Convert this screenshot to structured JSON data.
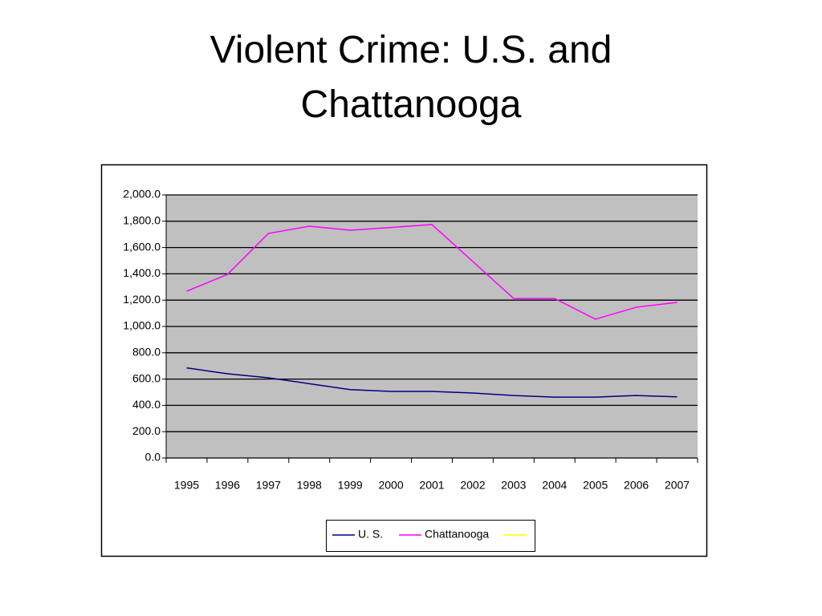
{
  "chart_data": {
    "type": "line",
    "title": "Violent Crime: U.S. and Chattanooga",
    "categories": [
      "1995",
      "1996",
      "1997",
      "1998",
      "1999",
      "2000",
      "2001",
      "2002",
      "2003",
      "2004",
      "2005",
      "2006",
      "2007"
    ],
    "series": [
      {
        "name": "U. S.",
        "color": "#000080",
        "values": [
          685,
          640,
          610,
          565,
          520,
          506,
          506,
          494,
          475,
          463,
          463,
          475,
          465
        ]
      },
      {
        "name": "Chattanooga",
        "color": "#ff00ff",
        "values": [
          1268,
          1396,
          1707,
          1762,
          1732,
          1752,
          1775,
          1494,
          1213,
          1213,
          1055,
          1146,
          1183
        ]
      }
    ],
    "ylim": [
      0,
      2000
    ],
    "yticks": [
      {
        "value": 0,
        "label": "0.0"
      },
      {
        "value": 200,
        "label": "200.0"
      },
      {
        "value": 400,
        "label": "400.0"
      },
      {
        "value": 600,
        "label": "600.0"
      },
      {
        "value": 800,
        "label": "800.0"
      },
      {
        "value": 1000,
        "label": "1,000.0"
      },
      {
        "value": 1200,
        "label": "1,200.0"
      },
      {
        "value": 1400,
        "label": "1,400.0"
      },
      {
        "value": 1600,
        "label": "1,600.0"
      },
      {
        "value": 1800,
        "label": "1,800.0"
      },
      {
        "value": 2000,
        "label": "2,000.0"
      }
    ],
    "grid": true,
    "legend": "bottom"
  }
}
